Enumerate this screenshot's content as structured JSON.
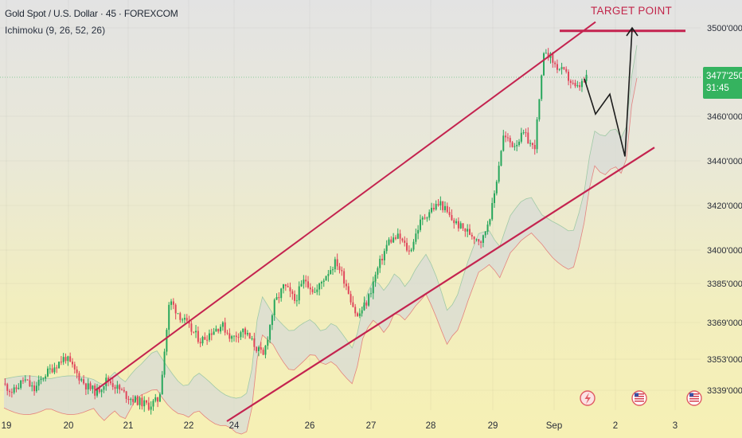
{
  "header": {
    "symbol_line": "Gold Spot / U.S. Dollar · 45 · FOREXCOM",
    "indicator_line": "Ichimoku (9, 26, 52, 26)"
  },
  "annotation": {
    "target_label": "TARGET POINT"
  },
  "price_tag": {
    "price": "3477'250",
    "countdown": "31:45"
  },
  "colors": {
    "up": "#26a65b",
    "down": "#e0455a",
    "channel": "#c4234f",
    "cloud": "#d8dbd6",
    "projection": "#1c1c1c",
    "price_tag": "#35b35f"
  },
  "icons": [
    "lightning-icon",
    "us-flag-icon",
    "us-flag-icon"
  ],
  "chart_data": {
    "type": "candlestick",
    "y_ticks": [
      {
        "label": "3500'000",
        "value": 3500
      },
      {
        "label": "3460'000",
        "value": 3460
      },
      {
        "label": "3440'000",
        "value": 3440
      },
      {
        "label": "3420'000",
        "value": 3420
      },
      {
        "label": "3400'000",
        "value": 3400
      },
      {
        "label": "3385'000",
        "value": 3385
      },
      {
        "label": "3369'000",
        "value": 3369
      },
      {
        "label": "3353'000",
        "value": 3353
      },
      {
        "label": "3339'000",
        "value": 3339
      }
    ],
    "x_ticks": [
      "19",
      "20",
      "21",
      "22",
      "24",
      "26",
      "27",
      "28",
      "29",
      "Sep",
      "2",
      "3"
    ],
    "last_price": 3477.25,
    "price_path": [
      3342,
      3338,
      3344,
      3339,
      3346,
      3350,
      3354,
      3347,
      3341,
      3338,
      3344,
      3340,
      3336,
      3334,
      3332,
      3335,
      3378,
      3372,
      3366,
      3361,
      3365,
      3368,
      3362,
      3366,
      3360,
      3354,
      3376,
      3384,
      3378,
      3387,
      3381,
      3389,
      3395,
      3384,
      3371,
      3378,
      3392,
      3404,
      3406,
      3399,
      3412,
      3418,
      3421,
      3414,
      3410,
      3407,
      3404,
      3420,
      3451,
      3447,
      3452,
      3445,
      3491,
      3483,
      3479,
      3472,
      3477
    ],
    "channel_upper": [
      [
        3339,
        3500
      ],
      [
        3378,
        3505
      ]
    ],
    "channel_lower": [
      [
        3325,
        3353
      ],
      [
        3442,
        3446
      ]
    ],
    "target_level": 3501,
    "projection": [
      3477,
      3461,
      3470,
      3442,
      3500
    ]
  }
}
